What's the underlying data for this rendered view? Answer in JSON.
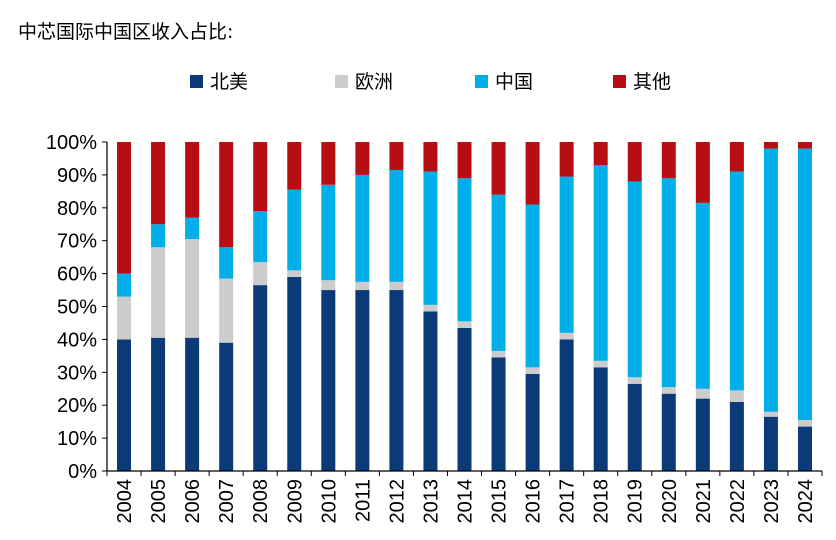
{
  "title": "中芯国际中国区收入占比:",
  "chart_data": {
    "type": "bar",
    "stacked": true,
    "categories": [
      "2004",
      "2005",
      "2006",
      "2007",
      "2008",
      "2009",
      "2010",
      "2011",
      "2012",
      "2013",
      "2014",
      "2015",
      "2016",
      "2017",
      "2018",
      "2019",
      "2020",
      "2021",
      "2022",
      "2023",
      "2024"
    ],
    "series": [
      {
        "name": "北美",
        "color": "#0a3a78",
        "values": [
          40,
          40.5,
          40.5,
          39,
          56.5,
          59,
          55,
          55,
          55,
          48.5,
          43.5,
          34.5,
          29.5,
          40,
          31.5,
          26.5,
          23.5,
          22,
          21,
          16.5,
          13.5
        ]
      },
      {
        "name": "欧洲",
        "color": "#cccccc",
        "values": [
          13,
          27.5,
          30,
          19.5,
          7,
          2,
          3,
          2.5,
          2.5,
          2,
          2,
          2,
          2,
          2,
          2,
          2,
          2,
          3,
          3.5,
          1.5,
          2
        ]
      },
      {
        "name": "中国",
        "color": "#00aee8",
        "values": [
          7,
          7,
          6.5,
          9.5,
          15.5,
          24.5,
          29,
          32.5,
          34,
          40.5,
          43.5,
          47.5,
          49.5,
          47.5,
          59.5,
          59.5,
          63.5,
          56.5,
          66.5,
          80,
          82.5
        ]
      },
      {
        "name": "其他",
        "color": "#b80d12",
        "values": [
          40,
          25,
          23,
          32,
          21,
          14.5,
          13,
          10,
          8.5,
          9,
          11,
          16,
          19,
          10.5,
          7,
          12,
          11,
          18.5,
          9,
          2,
          2
        ]
      }
    ],
    "y_ticks": [
      "0%",
      "10%",
      "20%",
      "30%",
      "40%",
      "50%",
      "60%",
      "70%",
      "80%",
      "90%",
      "100%"
    ],
    "ylim": [
      0,
      100
    ],
    "legend_position": "top",
    "grid": false
  }
}
